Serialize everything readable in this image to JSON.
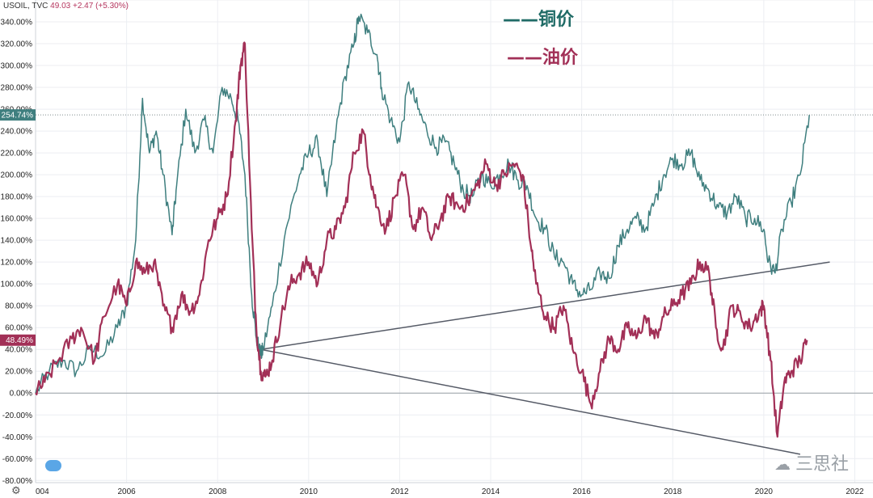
{
  "header": {
    "symbol": "USOIL, TVC",
    "price": "49.03",
    "change": "+2.47 (+5.30%)"
  },
  "legend": {
    "copper_label": "——铜价",
    "oil_label": "——油价"
  },
  "watermark": {
    "icon": "wechat-icon",
    "text": "三思社"
  },
  "colors": {
    "copper": "#3f7f7f",
    "oil": "#a23057",
    "trendline": "#555a66"
  },
  "chart_data": {
    "type": "line",
    "title": "",
    "xlabel": "",
    "ylabel": "",
    "xlim": [
      2004,
      2022.4
    ],
    "ylim": [
      -82,
      360
    ],
    "x_ticks": [
      "004",
      "2006",
      "2008",
      "2010",
      "2012",
      "2014",
      "2016",
      "2018",
      "2020",
      "2022"
    ],
    "x_tick_values": [
      2004,
      2006,
      2008,
      2010,
      2012,
      2014,
      2016,
      2018,
      2020,
      2022
    ],
    "y_ticks": [
      "-80.00%",
      "-60.00%",
      "-40.00%",
      "-20.00%",
      "0.00%",
      "20.00%",
      "40.00%",
      "60.00%",
      "80.00%",
      "100.00%",
      "120.00%",
      "140.00%",
      "160.00%",
      "180.00%",
      "200.00%",
      "220.00%",
      "240.00%",
      "260.00%",
      "280.00%",
      "300.00%",
      "320.00%",
      "340.00%",
      "360.00%"
    ],
    "y_tick_values": [
      -80,
      -60,
      -40,
      -20,
      0,
      20,
      40,
      60,
      80,
      100,
      120,
      140,
      160,
      180,
      200,
      220,
      240,
      260,
      280,
      300,
      320,
      340,
      360
    ],
    "price_labels": [
      {
        "series": "copper",
        "value": 254.74,
        "text": "254.74%"
      },
      {
        "series": "oil",
        "value": 48.49,
        "text": "48.49%"
      }
    ],
    "series": [
      {
        "key": "copper",
        "x": [
          2004.0,
          2004.3,
          2004.6,
          2004.9,
          2005.2,
          2005.5,
          2005.8,
          2006.0,
          2006.2,
          2006.35,
          2006.5,
          2006.65,
          2006.8,
          2007.0,
          2007.1,
          2007.3,
          2007.5,
          2007.7,
          2007.9,
          2008.1,
          2008.3,
          2008.45,
          2008.6,
          2008.75,
          2008.85,
          2008.95,
          2009.0,
          2009.2,
          2009.5,
          2009.8,
          2010.0,
          2010.2,
          2010.4,
          2010.6,
          2010.8,
          2011.0,
          2011.1,
          2011.3,
          2011.5,
          2011.6,
          2011.8,
          2012.0,
          2012.2,
          2012.4,
          2012.6,
          2012.8,
          2013.0,
          2013.2,
          2013.4,
          2013.6,
          2013.8,
          2014.0,
          2014.2,
          2014.4,
          2014.6,
          2014.8,
          2015.0,
          2015.2,
          2015.4,
          2015.6,
          2015.8,
          2016.0,
          2016.2,
          2016.4,
          2016.6,
          2016.8,
          2017.0,
          2017.2,
          2017.4,
          2017.6,
          2017.8,
          2018.0,
          2018.2,
          2018.4,
          2018.6,
          2018.8,
          2019.0,
          2019.2,
          2019.4,
          2019.6,
          2019.8,
          2020.0,
          2020.1,
          2020.25,
          2020.4,
          2020.6,
          2020.8,
          2021.0
        ],
        "y": [
          0,
          20,
          30,
          20,
          40,
          35,
          60,
          80,
          140,
          270,
          220,
          240,
          200,
          145,
          190,
          260,
          220,
          250,
          220,
          280,
          270,
          250,
          200,
          90,
          50,
          35,
          40,
          80,
          150,
          200,
          220,
          230,
          180,
          240,
          290,
          320,
          345,
          330,
          310,
          280,
          250,
          230,
          285,
          260,
          240,
          225,
          230,
          210,
          185,
          180,
          200,
          190,
          200,
          210,
          195,
          190,
          160,
          150,
          125,
          120,
          100,
          90,
          95,
          110,
          105,
          135,
          150,
          160,
          150,
          175,
          200,
          215,
          210,
          220,
          195,
          185,
          170,
          165,
          180,
          160,
          160,
          150,
          120,
          110,
          150,
          175,
          200,
          254.74
        ]
      },
      {
        "key": "oil",
        "x": [
          2004.0,
          2004.2,
          2004.5,
          2004.8,
          2005.0,
          2005.3,
          2005.5,
          2005.8,
          2006.0,
          2006.2,
          2006.4,
          2006.6,
          2006.8,
          2007.0,
          2007.2,
          2007.4,
          2007.6,
          2007.8,
          2008.0,
          2008.2,
          2008.4,
          2008.5,
          2008.6,
          2008.75,
          2008.85,
          2008.95,
          2009.05,
          2009.2,
          2009.4,
          2009.6,
          2009.8,
          2010.0,
          2010.2,
          2010.4,
          2010.6,
          2010.8,
          2011.0,
          2011.2,
          2011.35,
          2011.5,
          2011.7,
          2011.9,
          2012.1,
          2012.3,
          2012.5,
          2012.7,
          2012.9,
          2013.1,
          2013.3,
          2013.5,
          2013.7,
          2013.9,
          2014.1,
          2014.3,
          2014.5,
          2014.7,
          2014.9,
          2015.0,
          2015.2,
          2015.4,
          2015.6,
          2015.8,
          2016.0,
          2016.2,
          2016.4,
          2016.6,
          2016.8,
          2017.0,
          2017.2,
          2017.4,
          2017.6,
          2017.8,
          2018.0,
          2018.2,
          2018.4,
          2018.6,
          2018.8,
          2018.95,
          2019.1,
          2019.3,
          2019.5,
          2019.7,
          2019.9,
          2020.0,
          2020.15,
          2020.3,
          2020.45,
          2020.6,
          2020.8,
          2020.95
        ],
        "y": [
          0,
          10,
          30,
          50,
          60,
          30,
          70,
          100,
          80,
          120,
          110,
          120,
          80,
          60,
          90,
          75,
          90,
          140,
          160,
          180,
          250,
          300,
          320,
          150,
          60,
          20,
          15,
          30,
          70,
          100,
          110,
          120,
          100,
          140,
          150,
          170,
          220,
          240,
          200,
          170,
          150,
          180,
          200,
          150,
          170,
          140,
          160,
          180,
          170,
          175,
          190,
          210,
          190,
          200,
          210,
          200,
          130,
          100,
          70,
          60,
          80,
          40,
          20,
          -10,
          20,
          50,
          40,
          60,
          50,
          70,
          50,
          70,
          80,
          90,
          100,
          120,
          110,
          60,
          40,
          80,
          70,
          60,
          75,
          80,
          30,
          -40,
          10,
          20,
          30,
          48.49
        ]
      }
    ],
    "trendlines": [
      {
        "x": [
          2008.95,
          2021.45
        ],
        "y": [
          40,
          120
        ]
      },
      {
        "x": [
          2008.95,
          2020.8
        ],
        "y": [
          40,
          -56
        ]
      }
    ]
  }
}
